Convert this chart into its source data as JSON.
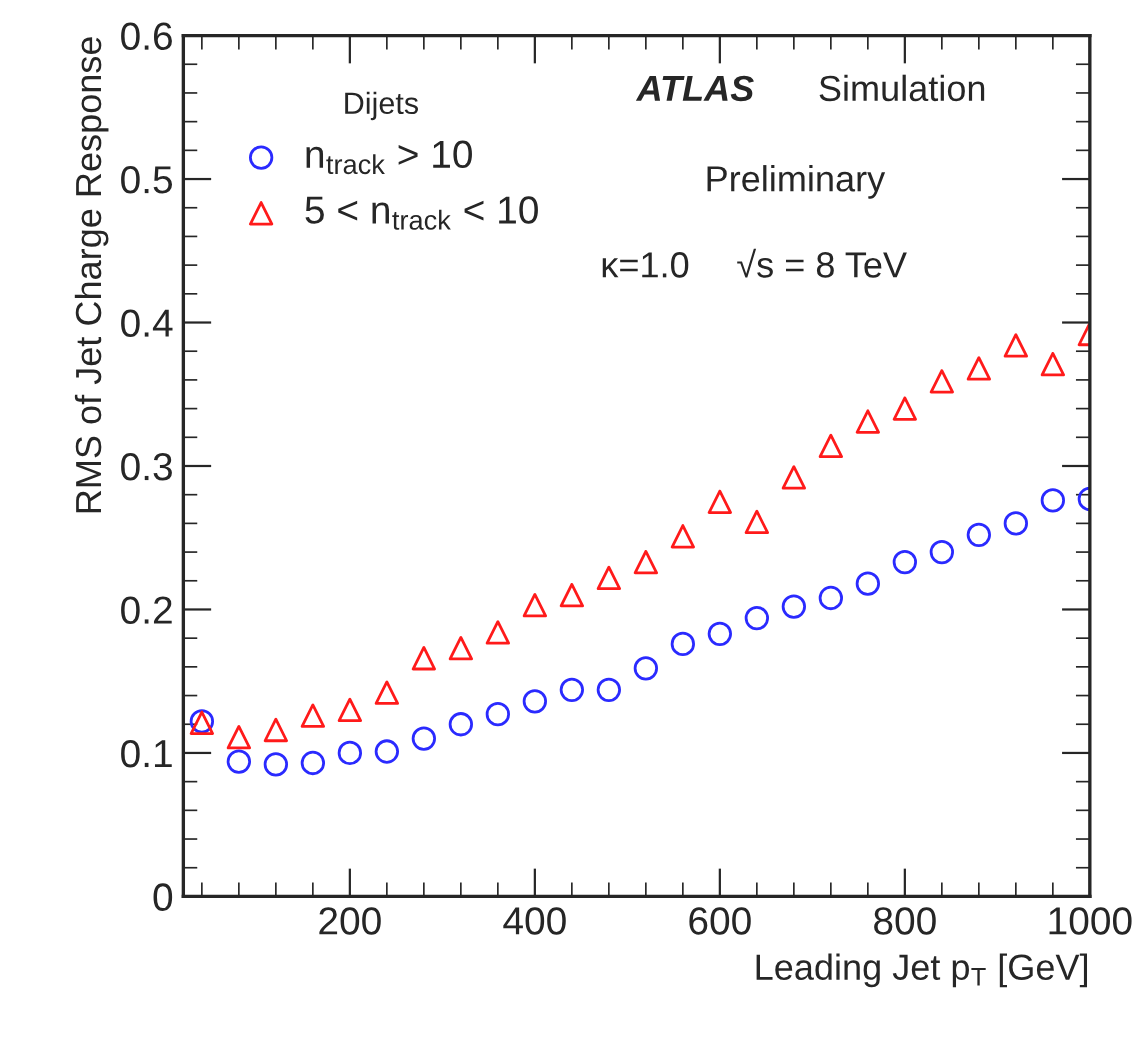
{
  "chart_data": {
    "type": "scatter",
    "xlabel": "Leading Jet p$_{T}$ [GeV]",
    "ylabel": "RMS of Jet Charge Response",
    "legend_title": "Dijets",
    "legend": "top left",
    "grid": false,
    "x": [
      40,
      80,
      120,
      160,
      200,
      240,
      280,
      320,
      360,
      400,
      440,
      480,
      520,
      560,
      600,
      640,
      680,
      720,
      760,
      800,
      840,
      880,
      920,
      960,
      1000
    ],
    "xlim": [
      20,
      1000
    ],
    "xticks": [
      200,
      400,
      600,
      800,
      1000
    ],
    "ylim": [
      0,
      0.6
    ],
    "yticks": [
      0,
      0.1,
      0.2,
      0.3,
      0.4,
      0.5,
      0.6
    ],
    "series": [
      {
        "name": "n$_{track}$ > 10",
        "color": "#2a2aff",
        "marker": "circle",
        "values": [
          0.122,
          0.094,
          0.092,
          0.093,
          0.1,
          0.101,
          0.11,
          0.12,
          0.127,
          0.136,
          0.144,
          0.144,
          0.159,
          0.176,
          0.183,
          0.194,
          0.202,
          0.208,
          0.218,
          0.233,
          0.24,
          0.252,
          0.26,
          0.276,
          0.277
        ]
      },
      {
        "name": "5 < n$_{track}$ < 10",
        "color": "#ff1a1a",
        "marker": "triangle",
        "values": [
          0.121,
          0.111,
          0.116,
          0.126,
          0.13,
          0.142,
          0.166,
          0.173,
          0.184,
          0.203,
          0.21,
          0.222,
          0.233,
          0.251,
          0.275,
          0.261,
          0.292,
          0.314,
          0.331,
          0.34,
          0.359,
          0.368,
          0.384,
          0.371,
          0.392
        ]
      }
    ],
    "annotations": [
      "ATLAS",
      "Simulation",
      "Preliminary",
      "κ=1.0",
      "√s = 8 TeV"
    ]
  }
}
